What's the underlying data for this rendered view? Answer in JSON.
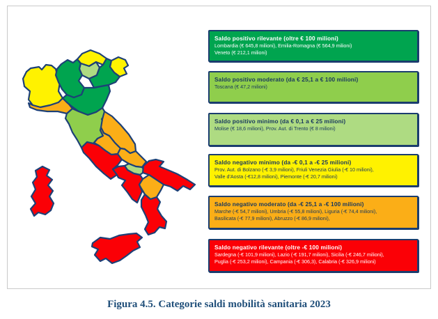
{
  "figure": {
    "caption": "Figura 4.5. Categorie saldi mobilità sanitaria 2023"
  },
  "colors": {
    "positive_high": "#00A44F",
    "positive_moderate": "#8FCE4C",
    "positive_low": "#AEDB82",
    "negative_low": "#FFF200",
    "negative_moderate": "#FBAE17",
    "negative_high": "#FB0006",
    "box_border": "#1B3D6E",
    "map_border": "#1D4077",
    "text_navy": "#17375E",
    "text_white": "#FFFFFF"
  },
  "legend": [
    {
      "category": "positive_high",
      "title": "Saldo positivo rilevante (oltre € 100 milioni)",
      "lines": [
        "Lombardia (€ 645,8 milioni), Emilia-Romagna (€ 564,9 milioni)",
        "Veneto (€ 212,1 milioni)"
      ],
      "bg": "#00A44F",
      "text_color": "#FFFFFF"
    },
    {
      "category": "positive_moderate",
      "title": "Saldo positivo moderato (da € 25,1 a € 100 milioni)",
      "lines": [
        "Toscana (€ 47,2 milioni)"
      ],
      "bg": "#8FCE4C",
      "text_color": "#17375E"
    },
    {
      "category": "positive_low",
      "title": "Saldo positivo minimo (da € 0,1 a € 25 milioni)",
      "lines": [
        "Molise (€ 18,6 milioni), Prov. Aut. di Trento (€ 8 milioni)"
      ],
      "bg": "#AEDB82",
      "text_color": "#17375E"
    },
    {
      "category": "negative_low",
      "title": "Saldo negativo minimo (da -€ 0,1 a -€ 25 milioni)",
      "lines": [
        "Prov. Aut. di Bolzano (-€ 3,9 milioni), Friuli Venezia Giulia (-€ 10 milioni),",
        "Valle d'Aosta (-€12,8 milioni), Piemonte (-€ 20,7 milioni)"
      ],
      "bg": "#FFF200",
      "text_color": "#17375E"
    },
    {
      "category": "negative_moderate",
      "title": "Saldo negativo moderato (da -€ 25,1 a -€ 100 milioni)",
      "lines": [
        "Marche (-€ 54,7 milioni), Umbria (-€ 55,8 milioni), Liguria (-€ 74,4 milioni),",
        "Basilicata (-€ 77,9 milioni), Abruzzo (-€ 86,9 milioni),"
      ],
      "bg": "#FBAE17",
      "text_color": "#17375E"
    },
    {
      "category": "negative_high",
      "title": "Saldo negativo rilevante (oltre -€ 100 milioni)",
      "lines": [
        "Sardegna (-€ 101,9 milioni), Lazio (-€ 191,7 milioni), Sicilia (-€ 246,7 milioni),",
        "Puglia (-€ 253,2 milioni), Campania (-€ 306,3), Calabria (-€ 326,9 milioni)"
      ],
      "bg": "#FB0006",
      "text_color": "#FFFFFF"
    }
  ],
  "map": {
    "regions": [
      {
        "key": "piemonte-valle-daosta",
        "name": "Piemonte / Valle d'Aosta",
        "category": "negative_low"
      },
      {
        "key": "lombardia",
        "name": "Lombardia",
        "category": "positive_high"
      },
      {
        "key": "bolzano",
        "name": "Prov. Aut. di Bolzano",
        "category": "negative_low"
      },
      {
        "key": "trento",
        "name": "Prov. Aut. di Trento",
        "category": "positive_low"
      },
      {
        "key": "veneto",
        "name": "Veneto",
        "category": "positive_high"
      },
      {
        "key": "friuli",
        "name": "Friuli Venezia Giulia",
        "category": "negative_low"
      },
      {
        "key": "liguria",
        "name": "Liguria",
        "category": "negative_moderate"
      },
      {
        "key": "emilia-romagna",
        "name": "Emilia-Romagna",
        "category": "positive_high"
      },
      {
        "key": "toscana",
        "name": "Toscana",
        "category": "positive_moderate"
      },
      {
        "key": "marche",
        "name": "Marche",
        "category": "negative_moderate"
      },
      {
        "key": "umbria",
        "name": "Umbria",
        "category": "negative_moderate"
      },
      {
        "key": "lazio",
        "name": "Lazio",
        "category": "negative_high"
      },
      {
        "key": "abruzzo",
        "name": "Abruzzo",
        "category": "negative_moderate"
      },
      {
        "key": "molise",
        "name": "Molise",
        "category": "positive_low"
      },
      {
        "key": "campania",
        "name": "Campania",
        "category": "negative_high"
      },
      {
        "key": "puglia",
        "name": "Puglia",
        "category": "negative_high"
      },
      {
        "key": "basilicata",
        "name": "Basilicata",
        "category": "negative_moderate"
      },
      {
        "key": "calabria",
        "name": "Calabria",
        "category": "negative_high"
      },
      {
        "key": "sicilia",
        "name": "Sicilia",
        "category": "negative_high"
      },
      {
        "key": "sardegna",
        "name": "Sardegna",
        "category": "negative_high"
      }
    ]
  },
  "chart_data": {
    "type": "choropleth-map",
    "title": "Figura 4.5. Categorie saldi mobilità sanitaria 2023",
    "unit": "milioni di €",
    "legend_position": "right",
    "values": {
      "Lombardia": 645.8,
      "Emilia-Romagna": 564.9,
      "Veneto": 212.1,
      "Toscana": 47.2,
      "Molise": 18.6,
      "Prov. Aut. di Trento": 8,
      "Prov. Aut. di Bolzano": -3.9,
      "Friuli Venezia Giulia": -10,
      "Valle d'Aosta": -12.8,
      "Piemonte": -20.7,
      "Marche": -54.7,
      "Umbria": -55.8,
      "Liguria": -74.4,
      "Basilicata": -77.9,
      "Abruzzo": -86.9,
      "Sardegna": -101.9,
      "Lazio": -191.7,
      "Sicilia": -246.7,
      "Puglia": -253.2,
      "Campania": -306.3,
      "Calabria": -326.9
    }
  }
}
